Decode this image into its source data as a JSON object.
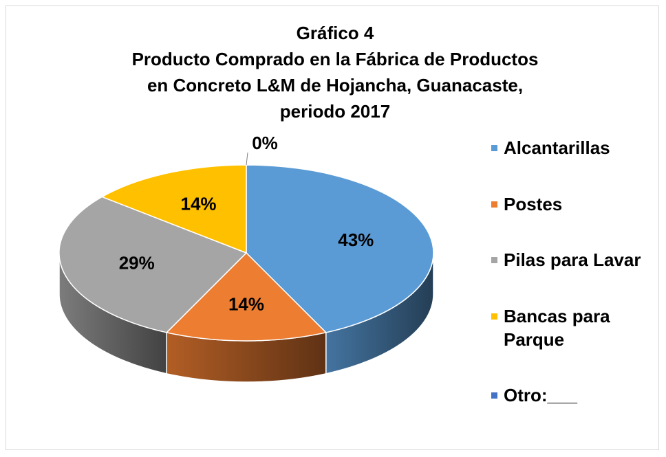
{
  "chart_data": {
    "type": "pie3d",
    "title": [
      "Gráfico 4",
      "Producto Comprado en la Fábrica de Productos",
      "en Concreto L&M de Hojancha, Guanacaste,",
      "periodo 2017"
    ],
    "categories": [
      "Alcantarillas",
      "Postes",
      "Pilas para Lavar",
      "Bancas para Parque",
      "Otro:___"
    ],
    "values": [
      43,
      14,
      29,
      14,
      0
    ],
    "value_labels": [
      "43%",
      "14%",
      "29%",
      "14%",
      "0%"
    ],
    "colors": [
      "#5b9bd5",
      "#ed7d31",
      "#a5a5a5",
      "#ffc000",
      "#4472c4"
    ],
    "legend": "right"
  }
}
